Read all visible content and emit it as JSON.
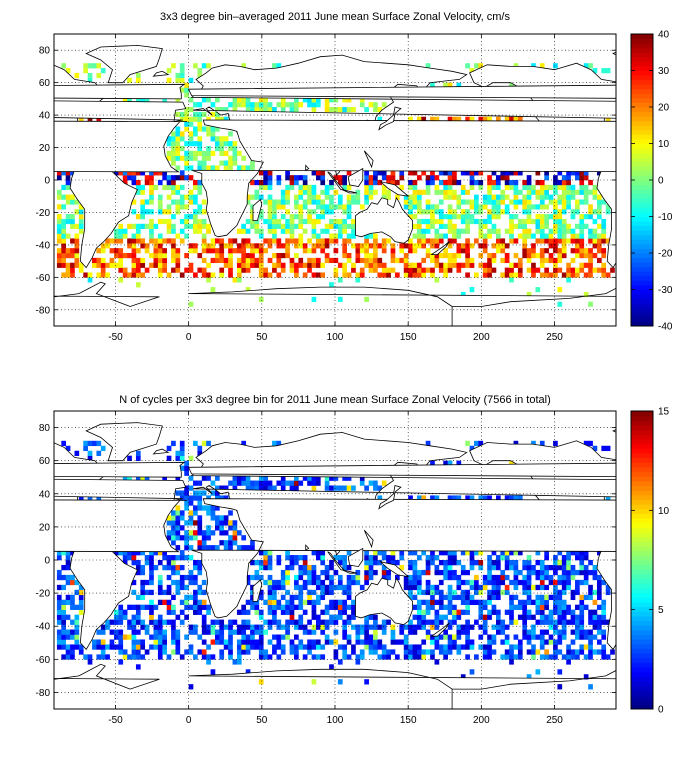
{
  "panels": [
    {
      "title": "3x3 degree bin–averaged 2011 June mean Surface Zonal Velocity, cm/s",
      "x_ticks": [
        "-50",
        "0",
        "50",
        "100",
        "150",
        "200",
        "250"
      ],
      "y_ticks": [
        "80",
        "60",
        "40",
        "20",
        "0",
        "-20",
        "-40",
        "-60",
        "-80"
      ],
      "colorbar_ticks": [
        "40",
        "30",
        "20",
        "10",
        "0",
        "-10",
        "-20",
        "-30",
        "-40"
      ],
      "colorbar_range": [
        -40,
        40
      ]
    },
    {
      "title": "N of cycles per 3x3 degree bin for 2011 June mean Surface Zonal Velocity (7566 in total)",
      "x_ticks": [
        "-50",
        "0",
        "50",
        "100",
        "150",
        "200",
        "250"
      ],
      "y_ticks": [
        "80",
        "60",
        "40",
        "20",
        "0",
        "-20",
        "-40",
        "-60",
        "-80"
      ],
      "colorbar_ticks": [
        "15",
        "10",
        "5",
        "0"
      ],
      "colorbar_range": [
        0,
        15
      ]
    }
  ],
  "chart_data": [
    {
      "type": "heatmap",
      "title": "3x3 degree bin–averaged 2011 June mean Surface Zonal Velocity, cm/s",
      "xlim": [
        -92,
        292
      ],
      "ylim": [
        -90,
        90
      ],
      "bin_size_deg": 3,
      "color_range": [
        -40,
        40
      ],
      "colormap": "jet",
      "grid": true
    },
    {
      "type": "heatmap",
      "title": "N of cycles per 3x3 degree bin for 2011 June mean Surface Zonal Velocity (7566 in total)",
      "xlim": [
        -92,
        292
      ],
      "ylim": [
        -90,
        90
      ],
      "bin_size_deg": 3,
      "color_range": [
        0,
        15
      ],
      "total_cycles": 7566,
      "colormap": "jet",
      "grid": true
    }
  ]
}
